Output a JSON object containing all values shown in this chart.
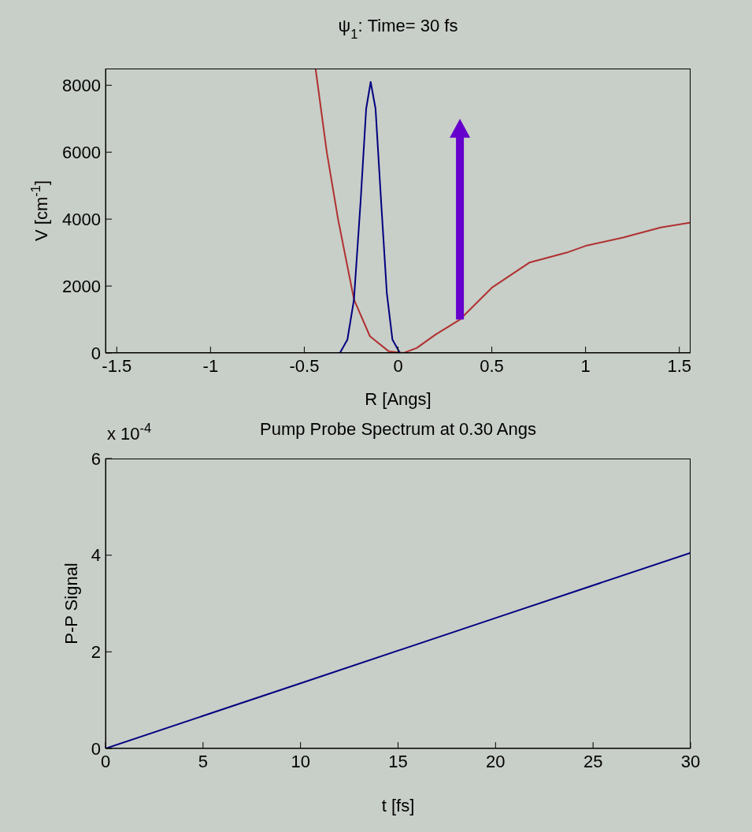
{
  "chart_data": [
    {
      "type": "line",
      "title": "ψ$_{1}$: Time= 30 fs",
      "xlabel": "R [Angs]",
      "ylabel": "V [cm$^{-1}$]",
      "xlim": [
        -1.56,
        1.56
      ],
      "xticks": [
        -1.5,
        -1,
        -0.5,
        0,
        0.5,
        1,
        1.5
      ],
      "ylim": [
        0,
        8500
      ],
      "yticks": [
        0,
        2000,
        4000,
        6000,
        8000
      ],
      "marker": "none",
      "series": [
        {
          "color": "#b03030",
          "x": [
            -0.44,
            -0.38,
            -0.32,
            -0.235,
            -0.15,
            -0.05,
            0.03,
            0.1,
            0.2,
            0.33,
            0.5,
            0.7,
            0.9,
            1.0,
            1.2,
            1.4,
            1.56
          ],
          "values": [
            8500,
            6000,
            4000,
            1600,
            500,
            50,
            0,
            150,
            550,
            1000,
            1950,
            2700,
            3000,
            3200,
            3450,
            3750,
            3900
          ]
        },
        {
          "color": "#000080",
          "x": [
            -1.56,
            -0.31,
            -0.27,
            -0.235,
            -0.2,
            -0.17,
            -0.146,
            -0.12,
            -0.09,
            -0.06,
            -0.03,
            0.01,
            1.56
          ],
          "values": [
            0,
            0,
            400,
            1600,
            4500,
            7300,
            8100,
            7300,
            4500,
            1800,
            400,
            0,
            0
          ]
        }
      ]
    },
    {
      "type": "line",
      "title": "Pump Probe Spectrum at 0.30 Angs",
      "xlabel": "t [fs]",
      "ylabel": "P-P Signal",
      "annotations": [
        "x 10$^{-4}$"
      ],
      "xlim": [
        0,
        30
      ],
      "xticks": [
        0,
        5,
        10,
        15,
        20,
        25,
        30
      ],
      "ylim": [
        0,
        6
      ],
      "yticks": [
        0,
        2,
        4,
        6
      ],
      "marker": "none",
      "series": [
        {
          "color": "#000080",
          "x": [
            0,
            10,
            20,
            30
          ],
          "values": [
            0,
            1.35,
            2.7,
            4.05
          ]
        }
      ]
    }
  ]
}
